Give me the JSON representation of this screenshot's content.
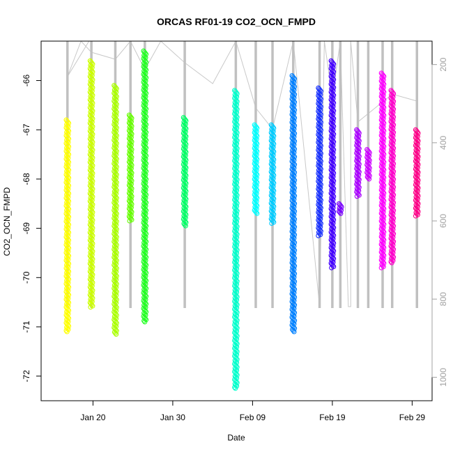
{
  "chart_data": {
    "type": "scatter",
    "title": "ORCAS RF01-19 CO2_OCN_FMPD",
    "xlabel": "Date",
    "ylabel": "CO2_OCN_FMPD",
    "ylim": [
      -72.5,
      -65.2
    ],
    "y_ticks": [
      -66,
      -67,
      -68,
      -69,
      -70,
      -71,
      -72
    ],
    "x_ticks": [
      {
        "day": 20,
        "label": "Jan 20"
      },
      {
        "day": 30,
        "label": "Jan 30"
      },
      {
        "day": 40,
        "label": "Feb 09"
      },
      {
        "day": 50,
        "label": "Feb 19"
      },
      {
        "day": 60,
        "label": "Feb 29"
      }
    ],
    "xlim_days_jan": [
      13.5,
      62.5
    ],
    "secondary_axis": {
      "color": "#a0a0a0",
      "ylim": [
        1060,
        140
      ],
      "ticks": [
        200,
        400,
        600,
        800,
        1000
      ]
    },
    "grid": false,
    "series": [
      {
        "color": "#ffff00",
        "x": 16.8,
        "min": -71.1,
        "max": -66.8
      },
      {
        "color": "#ccff00",
        "x": 19.8,
        "min": -70.6,
        "max": -65.6
      },
      {
        "color": "#aaff00",
        "x": 22.8,
        "min": -71.15,
        "max": -66.1
      },
      {
        "color": "#66ff00",
        "x": 24.7,
        "min": -68.85,
        "max": -66.7
      },
      {
        "color": "#22ff22",
        "x": 26.5,
        "min": -70.9,
        "max": -65.4
      },
      {
        "color": "#00ff66",
        "x": 31.5,
        "min": -68.95,
        "max": -66.75
      },
      {
        "color": "#00ffcc",
        "x": 37.9,
        "min": -72.25,
        "max": -66.2
      },
      {
        "color": "#00ffff",
        "x": 40.4,
        "min": -68.7,
        "max": -66.9
      },
      {
        "color": "#00ccff",
        "x": 42.5,
        "min": -68.9,
        "max": -66.9
      },
      {
        "color": "#0080ff",
        "x": 45.1,
        "min": -71.1,
        "max": -65.9
      },
      {
        "color": "#1a33ff",
        "x": 48.4,
        "min": -69.15,
        "max": -66.15
      },
      {
        "color": "#4400ff",
        "x": 50.0,
        "min": -69.8,
        "max": -65.6
      },
      {
        "color": "#7a00ff",
        "x": 51.0,
        "min": -68.7,
        "max": -68.5
      },
      {
        "color": "#aa00ff",
        "x": 53.2,
        "min": -68.35,
        "max": -67.0
      },
      {
        "color": "#cc00ff",
        "x": 54.5,
        "min": -68.0,
        "max": -67.4
      },
      {
        "color": "#ff00ff",
        "x": 56.3,
        "min": -69.8,
        "max": -65.85
      },
      {
        "color": "#ff00cc",
        "x": 57.5,
        "min": -69.7,
        "max": -66.2
      },
      {
        "color": "#ff0088",
        "x": 60.6,
        "min": -68.75,
        "max": -67.0
      }
    ]
  }
}
